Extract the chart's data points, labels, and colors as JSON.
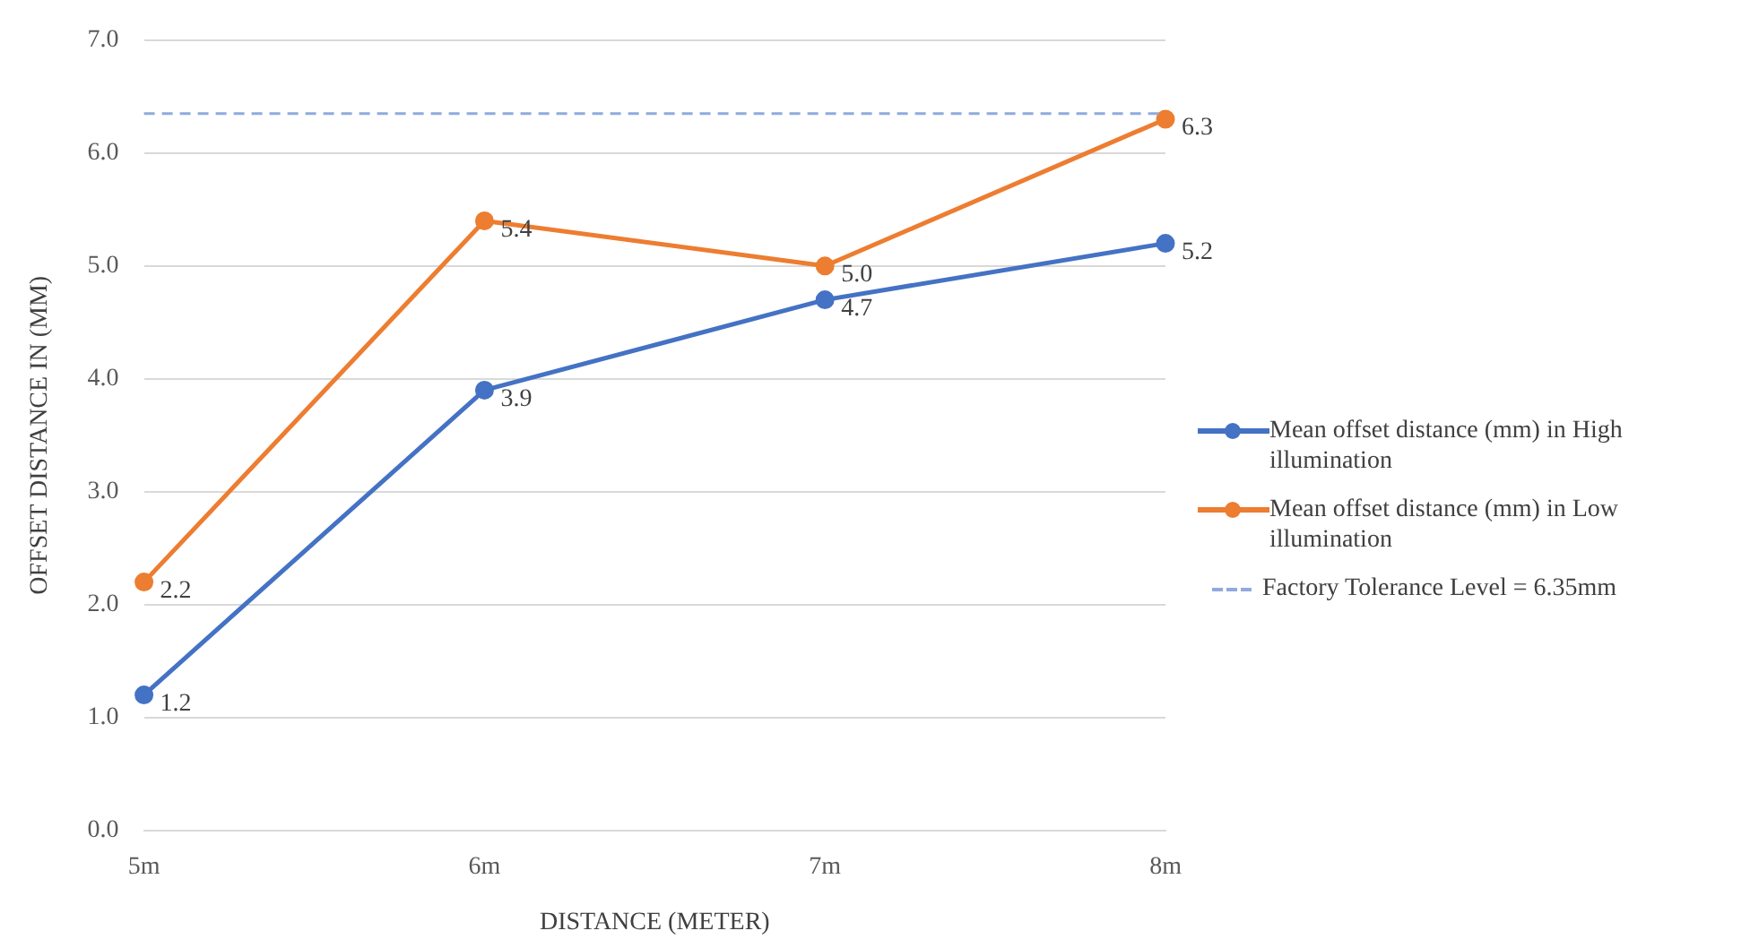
{
  "chart_data": {
    "type": "line",
    "categories": [
      "5m",
      "6m",
      "7m",
      "8m"
    ],
    "series": [
      {
        "name": "Mean offset distance (mm) in High illumination",
        "color": "#4472c4",
        "values": [
          1.2,
          3.9,
          4.7,
          5.2
        ],
        "value_labels": [
          "1.2",
          "3.9",
          "4.7",
          "5.2"
        ]
      },
      {
        "name": "Mean offset distance (mm) in Low illumination",
        "color": "#ed7d31",
        "values": [
          2.2,
          5.4,
          5.0,
          6.3
        ],
        "value_labels": [
          "2.2",
          "5.4",
          "5.0",
          "6.3"
        ]
      }
    ],
    "xlabel": "DISTANCE (METER)",
    "ylabel": "OFFSET DISTANCE IN (MM)",
    "ylim": [
      0,
      7
    ],
    "yticks": [
      {
        "value": 0,
        "label": "0.0"
      },
      {
        "value": 1,
        "label": "1.0"
      },
      {
        "value": 2,
        "label": "2.0"
      },
      {
        "value": 3,
        "label": "3.0"
      },
      {
        "value": 4,
        "label": "4.0"
      },
      {
        "value": 5,
        "label": "5.0"
      },
      {
        "value": 6,
        "label": "6.0"
      },
      {
        "value": 7,
        "label": "7.0"
      }
    ],
    "ref_lines": [
      {
        "axis": "y",
        "value": 6.35,
        "label": "Factory Tolerance Level = 6.35mm",
        "color": "#8faadc",
        "line_style": "dashed"
      }
    ],
    "grid": "y",
    "legend": "right",
    "marker": "circle",
    "line_style": "solid"
  }
}
